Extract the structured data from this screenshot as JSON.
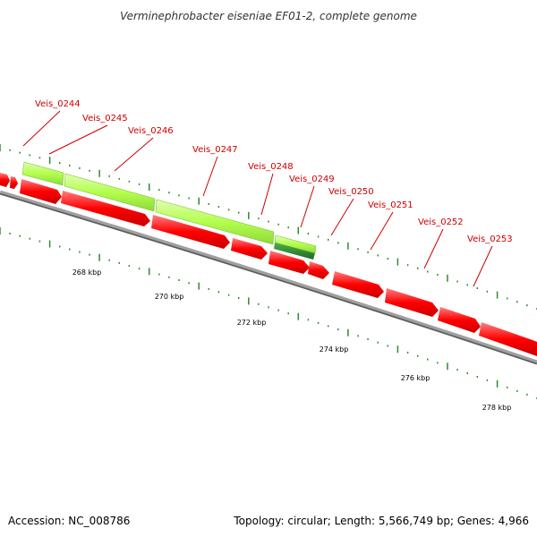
{
  "title": "Verminephrobacter eiseniae EF01-2, complete genome",
  "footer": {
    "accession": "Accession: NC_008786",
    "summary": "Topology: circular; Length: 5,566,749 bp; Genes: 4,966"
  },
  "colors": {
    "forward_cds": "#ff0000",
    "highlight_light": "#b3ff4d",
    "highlight_dark": "#2d8a2d",
    "backbone": "#888888",
    "tick": "#2e8b2e",
    "label": "#cc0000"
  },
  "gene_labels": [
    "Veis_0244",
    "Veis_0245",
    "Veis_0246",
    "Veis_0247",
    "Veis_0248",
    "Veis_0249",
    "Veis_0250",
    "Veis_0251",
    "Veis_0252",
    "Veis_0253"
  ],
  "kbp_labels": [
    "268 kbp",
    "270 kbp",
    "272 kbp",
    "274 kbp",
    "276 kbp",
    "278 kbp"
  ]
}
